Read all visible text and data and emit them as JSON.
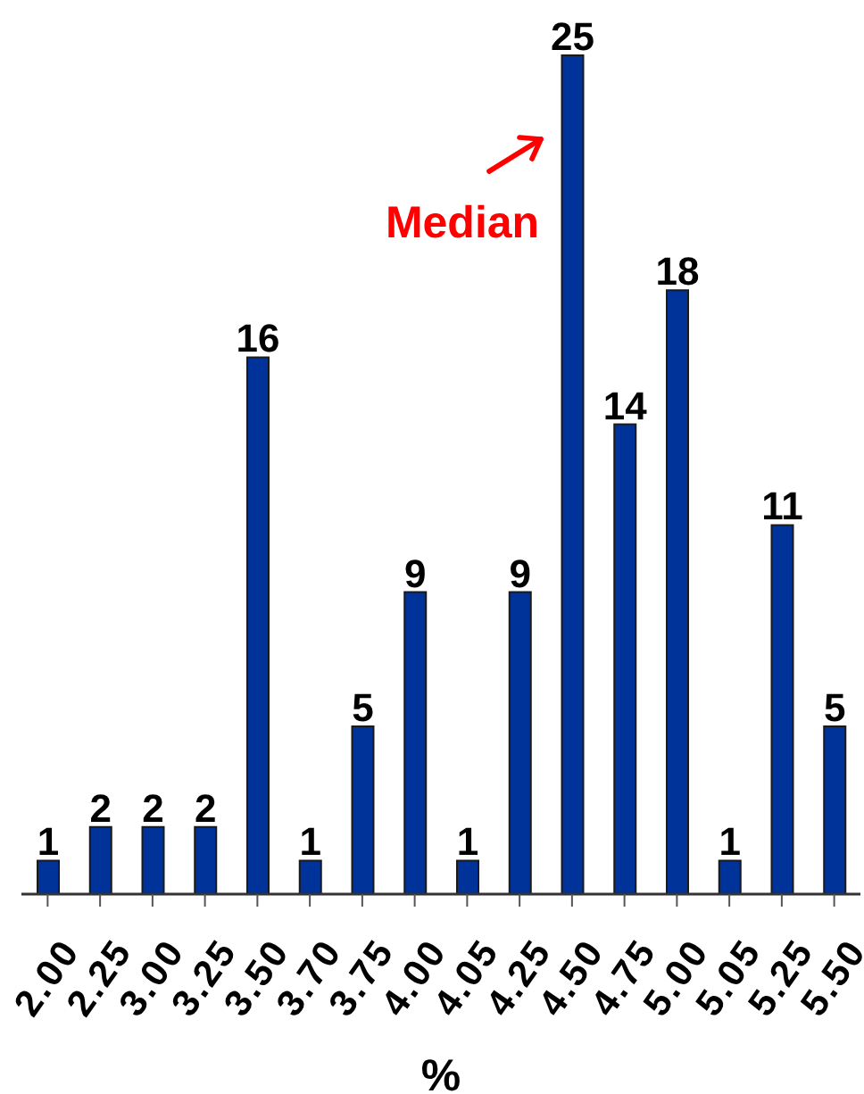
{
  "chart_data": {
    "type": "bar",
    "xlabel": "%",
    "categories": [
      "2.00",
      "2.25",
      "3.00",
      "3.25",
      "3.50",
      "3.70",
      "3.75",
      "4.00",
      "4.05",
      "4.25",
      "4.50",
      "4.75",
      "5.00",
      "5.05",
      "5.25",
      "5.50"
    ],
    "values": [
      1,
      2,
      2,
      2,
      16,
      1,
      5,
      9,
      1,
      9,
      25,
      14,
      18,
      1,
      11,
      5
    ],
    "color": "#003399",
    "data_labels": true,
    "tick_labels": "x",
    "annotations": [
      "Median"
    ]
  }
}
